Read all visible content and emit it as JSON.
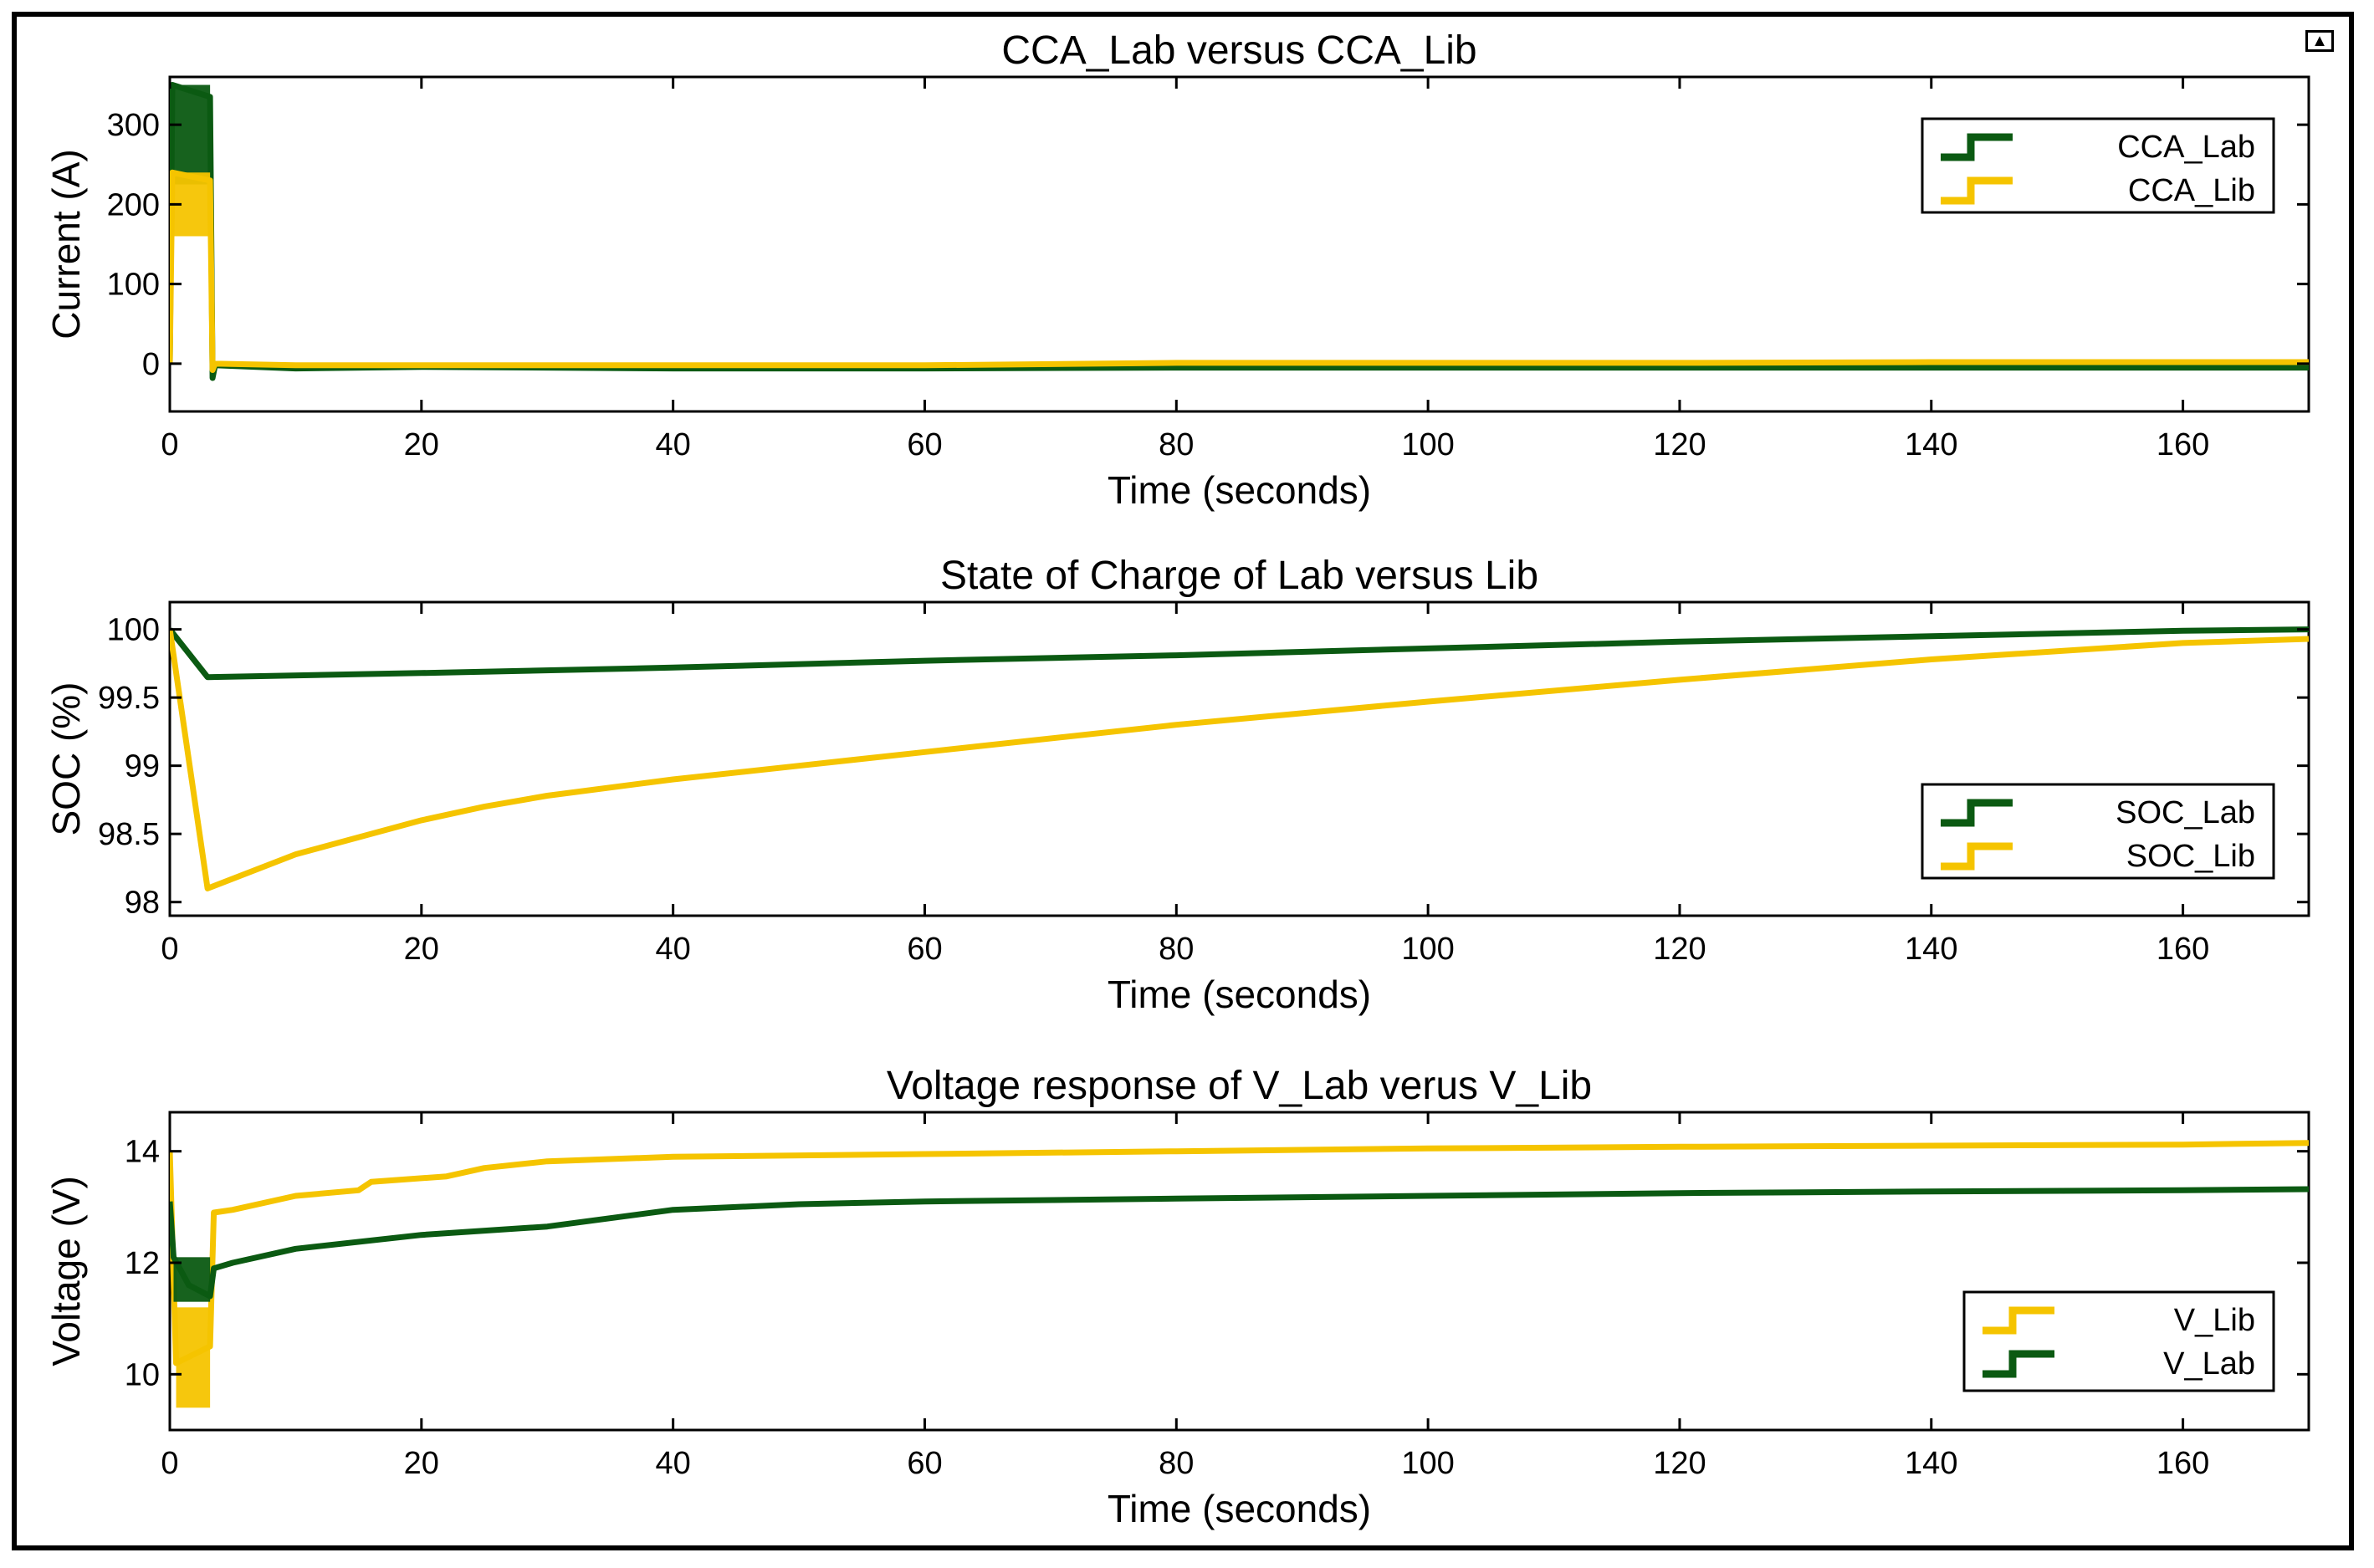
{
  "dock_icon": "dock-arrow-icon",
  "colors": {
    "lab": "#0b5a12",
    "lib": "#f5c400",
    "axes": "#000000"
  },
  "chart_data": [
    {
      "type": "line",
      "id": "current",
      "title": "CCA_Lab versus CCA_Lib",
      "xlabel": "Time (seconds)",
      "ylabel": "Current (A)",
      "xlim": [
        0,
        170
      ],
      "ylim": [
        -60,
        360
      ],
      "xticks": [
        0,
        20,
        40,
        60,
        80,
        100,
        120,
        140,
        160
      ],
      "yticks": [
        0,
        100,
        200,
        300
      ],
      "legend_position": "top-right",
      "series": [
        {
          "name": "CCA_Lab",
          "color_key": "lab",
          "x": [
            0,
            0.2,
            3.2,
            3.4,
            3.6,
            10,
            20,
            40,
            60,
            80,
            100,
            120,
            140,
            160,
            170
          ],
          "y": [
            0,
            350,
            335,
            -18,
            -2,
            -6,
            -4,
            -6,
            -6,
            -5,
            -5,
            -5,
            -5,
            -5,
            -5
          ],
          "band": {
            "x0": 0.2,
            "x1": 3.2,
            "low": 225,
            "high": 350
          }
        },
        {
          "name": "CCA_Lib",
          "color_key": "lib",
          "x": [
            0,
            0.2,
            3.2,
            3.4,
            3.6,
            10,
            20,
            40,
            60,
            80,
            100,
            120,
            140,
            160,
            170
          ],
          "y": [
            0,
            240,
            230,
            -8,
            0,
            -2,
            -2,
            -2,
            -2,
            1,
            1,
            1,
            2,
            2,
            2
          ],
          "band": {
            "x0": 0.2,
            "x1": 3.2,
            "low": 160,
            "high": 240
          }
        }
      ]
    },
    {
      "type": "line",
      "id": "soc",
      "title": "State of Charge of Lab versus Lib",
      "xlabel": "Time (seconds)",
      "ylabel": "SOC (%)",
      "xlim": [
        0,
        170
      ],
      "ylim": [
        97.9,
        100.2
      ],
      "xticks": [
        0,
        20,
        40,
        60,
        80,
        100,
        120,
        140,
        160
      ],
      "yticks": [
        98,
        98.5,
        99,
        99.5,
        100
      ],
      "legend_position": "bottom-right",
      "series": [
        {
          "name": "SOC_Lab",
          "color_key": "lab",
          "x": [
            0,
            3,
            20,
            40,
            60,
            80,
            100,
            120,
            140,
            160,
            170
          ],
          "y": [
            100,
            99.65,
            99.68,
            99.72,
            99.77,
            99.81,
            99.86,
            99.91,
            99.95,
            99.99,
            100
          ]
        },
        {
          "name": "SOC_Lib",
          "color_key": "lib",
          "x": [
            0,
            3,
            10,
            20,
            25,
            30,
            40,
            50,
            60,
            80,
            100,
            120,
            140,
            160,
            170
          ],
          "y": [
            100,
            98.1,
            98.35,
            98.6,
            98.7,
            98.78,
            98.9,
            99.0,
            99.1,
            99.3,
            99.47,
            99.63,
            99.78,
            99.9,
            99.93
          ]
        }
      ]
    },
    {
      "type": "line",
      "id": "voltage",
      "title": "Voltage response of V_Lab verus V_Lib",
      "xlabel": "Time (seconds)",
      "ylabel": "Voltage (V)",
      "xlim": [
        0,
        170
      ],
      "ylim": [
        9,
        14.7
      ],
      "xticks": [
        0,
        20,
        40,
        60,
        80,
        100,
        120,
        140,
        160
      ],
      "yticks": [
        10,
        12,
        14
      ],
      "legend_position": "bottom-right",
      "series": [
        {
          "name": "V_Lib",
          "color_key": "lib",
          "x": [
            0,
            0.5,
            3.2,
            3.5,
            5,
            10,
            15,
            16,
            22,
            25,
            30,
            40,
            60,
            80,
            100,
            120,
            140,
            160,
            170
          ],
          "y": [
            14,
            10.2,
            10.5,
            12.9,
            12.95,
            13.2,
            13.3,
            13.45,
            13.55,
            13.7,
            13.82,
            13.9,
            13.95,
            14.0,
            14.05,
            14.08,
            14.1,
            14.12,
            14.15
          ],
          "band": {
            "x0": 0.5,
            "x1": 3.2,
            "low": 9.4,
            "high": 11.2
          }
        },
        {
          "name": "V_Lab",
          "color_key": "lab",
          "x": [
            0,
            0.3,
            1.5,
            3.2,
            3.5,
            5,
            10,
            20,
            30,
            40,
            50,
            60,
            80,
            100,
            120,
            140,
            160,
            170
          ],
          "y": [
            13.1,
            12.1,
            11.6,
            11.4,
            11.9,
            12.0,
            12.25,
            12.5,
            12.65,
            12.95,
            13.05,
            13.1,
            13.15,
            13.2,
            13.25,
            13.28,
            13.3,
            13.32
          ],
          "band": {
            "x0": 0.3,
            "x1": 3.2,
            "low": 11.3,
            "high": 12.1
          }
        }
      ]
    }
  ]
}
